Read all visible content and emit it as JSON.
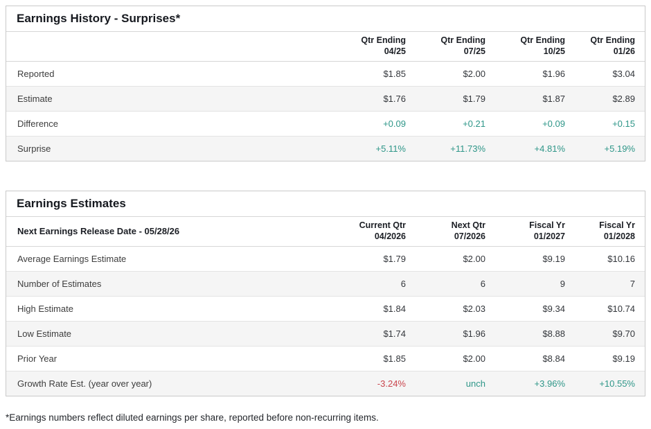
{
  "colors": {
    "positive_value": "#2E9688",
    "negative_value": "#C9444C",
    "zebra_row": "#F5F5F5",
    "border": "#C9C9C9"
  },
  "earnings_history": {
    "title": "Earnings History - Surprises*",
    "columns": [
      {
        "line1": "Qtr Ending",
        "line2": "04/25"
      },
      {
        "line1": "Qtr Ending",
        "line2": "07/25"
      },
      {
        "line1": "Qtr Ending",
        "line2": "10/25"
      },
      {
        "line1": "Qtr Ending",
        "line2": "01/26"
      }
    ],
    "rows": [
      {
        "label": "Reported",
        "values": [
          "$1.85",
          "$2.00",
          "$1.96",
          "$3.04"
        ],
        "tones": [
          "neutral",
          "neutral",
          "neutral",
          "neutral"
        ]
      },
      {
        "label": "Estimate",
        "values": [
          "$1.76",
          "$1.79",
          "$1.87",
          "$2.89"
        ],
        "tones": [
          "neutral",
          "neutral",
          "neutral",
          "neutral"
        ]
      },
      {
        "label": "Difference",
        "values": [
          "+0.09",
          "+0.21",
          "+0.09",
          "+0.15"
        ],
        "tones": [
          "positive",
          "positive",
          "positive",
          "positive"
        ]
      },
      {
        "label": "Surprise",
        "values": [
          "+5.11%",
          "+11.73%",
          "+4.81%",
          "+5.19%"
        ],
        "tones": [
          "positive",
          "positive",
          "positive",
          "positive"
        ]
      }
    ]
  },
  "earnings_estimates": {
    "title": "Earnings Estimates",
    "release_date_label": "Next Earnings Release Date - 05/28/26",
    "columns": [
      {
        "line1": "Current Qtr",
        "line2": "04/2026"
      },
      {
        "line1": "Next Qtr",
        "line2": "07/2026"
      },
      {
        "line1": "Fiscal Yr",
        "line2": "01/2027"
      },
      {
        "line1": "Fiscal Yr",
        "line2": "01/2028"
      }
    ],
    "rows": [
      {
        "label": "Average Earnings Estimate",
        "values": [
          "$1.79",
          "$2.00",
          "$9.19",
          "$10.16"
        ],
        "tones": [
          "neutral",
          "neutral",
          "neutral",
          "neutral"
        ]
      },
      {
        "label": "Number of Estimates",
        "values": [
          "6",
          "6",
          "9",
          "7"
        ],
        "tones": [
          "neutral",
          "neutral",
          "neutral",
          "neutral"
        ]
      },
      {
        "label": "High Estimate",
        "values": [
          "$1.84",
          "$2.03",
          "$9.34",
          "$10.74"
        ],
        "tones": [
          "neutral",
          "neutral",
          "neutral",
          "neutral"
        ]
      },
      {
        "label": "Low Estimate",
        "values": [
          "$1.74",
          "$1.96",
          "$8.88",
          "$9.70"
        ],
        "tones": [
          "neutral",
          "neutral",
          "neutral",
          "neutral"
        ]
      },
      {
        "label": "Prior Year",
        "values": [
          "$1.85",
          "$2.00",
          "$8.84",
          "$9.19"
        ],
        "tones": [
          "neutral",
          "neutral",
          "neutral",
          "neutral"
        ]
      },
      {
        "label": "Growth Rate Est. (year over year)",
        "values": [
          "-3.24%",
          "unch",
          "+3.96%",
          "+10.55%"
        ],
        "tones": [
          "negative",
          "positive",
          "positive",
          "positive"
        ]
      }
    ]
  },
  "footnote": "*Earnings numbers reflect diluted earnings per share, reported before non-recurring items."
}
